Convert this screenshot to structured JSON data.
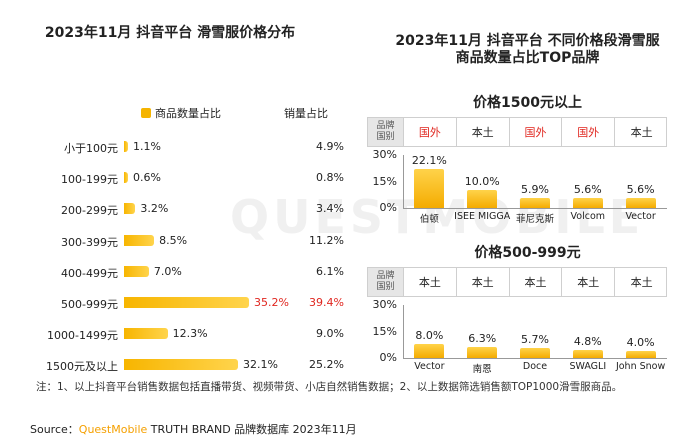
{
  "watermark": "QUESTMOBILE",
  "left": {
    "title": "2023年11月 抖音平台 滑雪服价格分布",
    "legend_label": "商品数量占比",
    "col2_header": "销量占比"
  },
  "right": {
    "title_line1": "2023年11月 抖音平台 不同价格段滑雪服",
    "title_line2": "商品数量占比TOP品牌",
    "table_header": "品牌\n国别",
    "panel1": {
      "title": "价格1500元以上",
      "origins": [
        "国外",
        "本土",
        "国外",
        "国外",
        "本土"
      ]
    },
    "panel2": {
      "title": "价格500-999元",
      "origins": [
        "本土",
        "本土",
        "本土",
        "本土",
        "本土"
      ]
    }
  },
  "chart_data": [
    {
      "type": "bar",
      "title": "2023年11月 抖音平台 滑雪服价格分布",
      "orientation": "horizontal",
      "categories": [
        "小于100元",
        "100-199元",
        "200-299元",
        "300-399元",
        "400-499元",
        "500-999元",
        "1000-1499元",
        "1500元及以上"
      ],
      "series": [
        {
          "name": "商品数量占比",
          "values": [
            1.1,
            0.6,
            3.2,
            8.5,
            7.0,
            35.2,
            12.3,
            32.1
          ],
          "labels": [
            "1.1%",
            "0.6%",
            "3.2%",
            "8.5%",
            "7.0%",
            "35.2%",
            "12.3%",
            "32.1%"
          ]
        },
        {
          "name": "销量占比",
          "values": [
            4.9,
            0.8,
            3.4,
            11.2,
            6.1,
            39.4,
            9.0,
            25.2
          ],
          "labels": [
            "4.9%",
            "0.8%",
            "3.4%",
            "11.2%",
            "6.1%",
            "39.4%",
            "9.0%",
            "25.2%"
          ]
        }
      ],
      "highlight_index": 5,
      "highlight_color": "#e0261f",
      "bar_color": "#f5b400"
    },
    {
      "type": "bar",
      "title": "价格1500元以上",
      "categories": [
        "伯顿",
        "ISEE MIGGA",
        "菲尼克斯",
        "Volcom",
        "Vector"
      ],
      "values": [
        22.1,
        10.0,
        5.9,
        5.6,
        5.6
      ],
      "labels": [
        "22.1%",
        "10.0%",
        "5.9%",
        "5.6%",
        "5.6%"
      ],
      "yticks": [
        "30%",
        "15%",
        "0%"
      ],
      "ylim": [
        0,
        30
      ]
    },
    {
      "type": "bar",
      "title": "价格500-999元",
      "categories": [
        "Vector",
        "南恩",
        "Doce",
        "SWAGLI",
        "John Snow"
      ],
      "values": [
        8.0,
        6.3,
        5.7,
        4.8,
        4.0
      ],
      "labels": [
        "8.0%",
        "6.3%",
        "5.7%",
        "4.8%",
        "4.0%"
      ],
      "yticks": [
        "30%",
        "15%",
        "0%"
      ],
      "ylim": [
        0,
        30
      ]
    }
  ],
  "footer": {
    "note": "注：1、以上抖音平台销售数据包括直播带货、视频带货、小店自然销售数据；2、以上数据筛选销售额TOP1000滑雪服商品。",
    "source_prefix": "Source：",
    "source_brand": "QuestMobile",
    "source_rest": " TRUTH BRAND 品牌数据库 2023年11月"
  },
  "colors": {
    "accent": "#f5b400",
    "red": "#e0261f",
    "header_bg": "#e6e6e6"
  }
}
